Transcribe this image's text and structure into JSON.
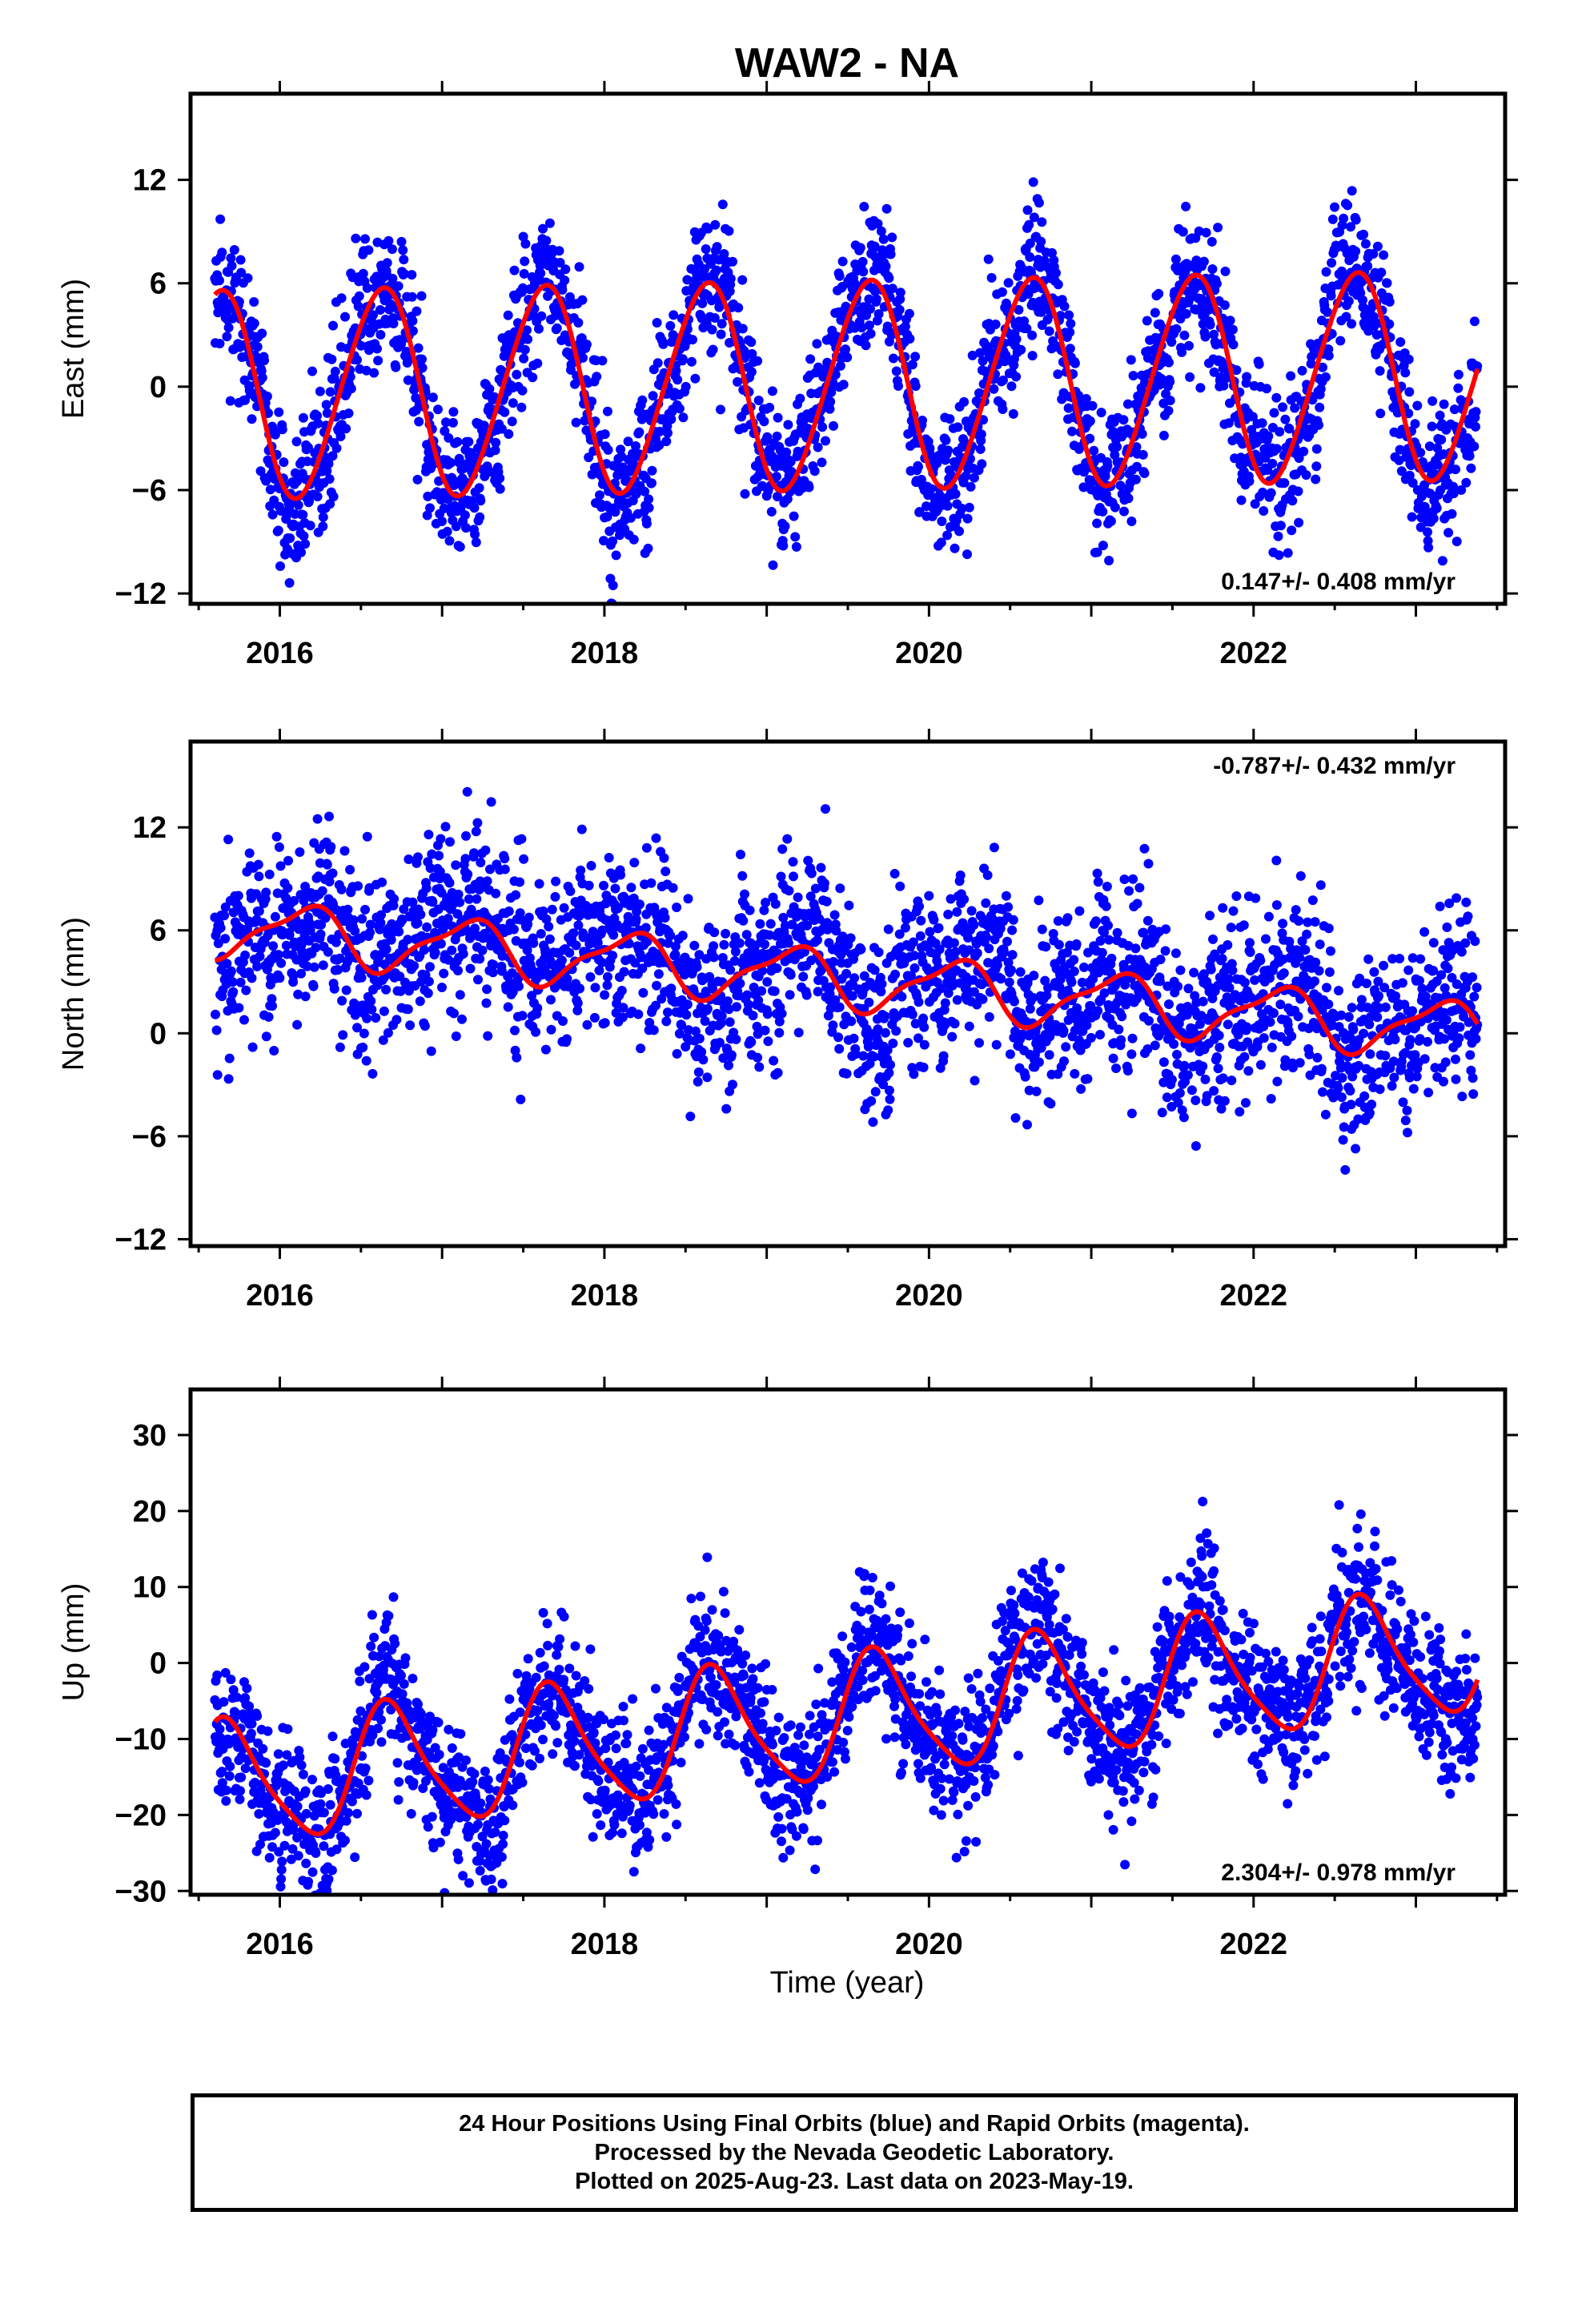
{
  "chart_data": {
    "title": "WAW2 - NA",
    "xlabel": "Time (year)",
    "xlim": [
      2015.45,
      2023.55
    ],
    "xticks": [
      2016,
      2018,
      2020,
      2022
    ],
    "colors": {
      "points": "#0000ff",
      "model": "#ff0000",
      "frame": "#000000"
    },
    "panels": [
      {
        "type": "scatter",
        "name": "east",
        "ylabel": "East (mm)",
        "ylim": [
          -12.6,
          17
        ],
        "yticks": [
          -12,
          -6,
          0,
          6,
          12
        ],
        "rate": "0.147+/- 0.408 mm/yr",
        "rate_position": "bottom-right",
        "model": {
          "mean": 0.1,
          "trend": 0.147,
          "annual_amp": 6.0,
          "peak_phase": 0.62,
          "semi_amp": 0.5,
          "semi_phase": 0.25,
          "noise": 2.3
        }
      },
      {
        "type": "scatter",
        "name": "north",
        "ylabel": "North (mm)",
        "ylim": [
          -12.4,
          17
        ],
        "yticks": [
          -12,
          -6,
          0,
          6,
          12
        ],
        "rate": "-0.787+/- 0.432 mm/yr",
        "rate_position": "top-right",
        "model": {
          "mean": 3.2,
          "trend": -0.787,
          "annual_amp": 1.6,
          "peak_phase": 0.15,
          "semi_amp": 0.5,
          "semi_phase": 0.3,
          "noise": 2.8
        }
      },
      {
        "type": "scatter",
        "name": "up",
        "ylabel": "Up (mm)",
        "ylim": [
          -30.5,
          36
        ],
        "yticks": [
          -30,
          -20,
          -10,
          0,
          10,
          20,
          30
        ],
        "rate": "2.304+/- 0.978 mm/yr",
        "rate_position": "bottom-right",
        "model": {
          "mean": -7.5,
          "trend": 2.304,
          "annual_amp": 8.0,
          "peak_phase": 0.68,
          "semi_amp": 1.5,
          "semi_phase": 0.1,
          "noise": 5.2
        }
      }
    ]
  },
  "caption": {
    "line1": "24 Hour Positions Using Final Orbits (blue) and Rapid Orbits (magenta).",
    "line2": "Processed by the Nevada Geodetic Laboratory.",
    "line3": "Plotted on 2025-Aug-23. Last data on 2023-May-19."
  }
}
